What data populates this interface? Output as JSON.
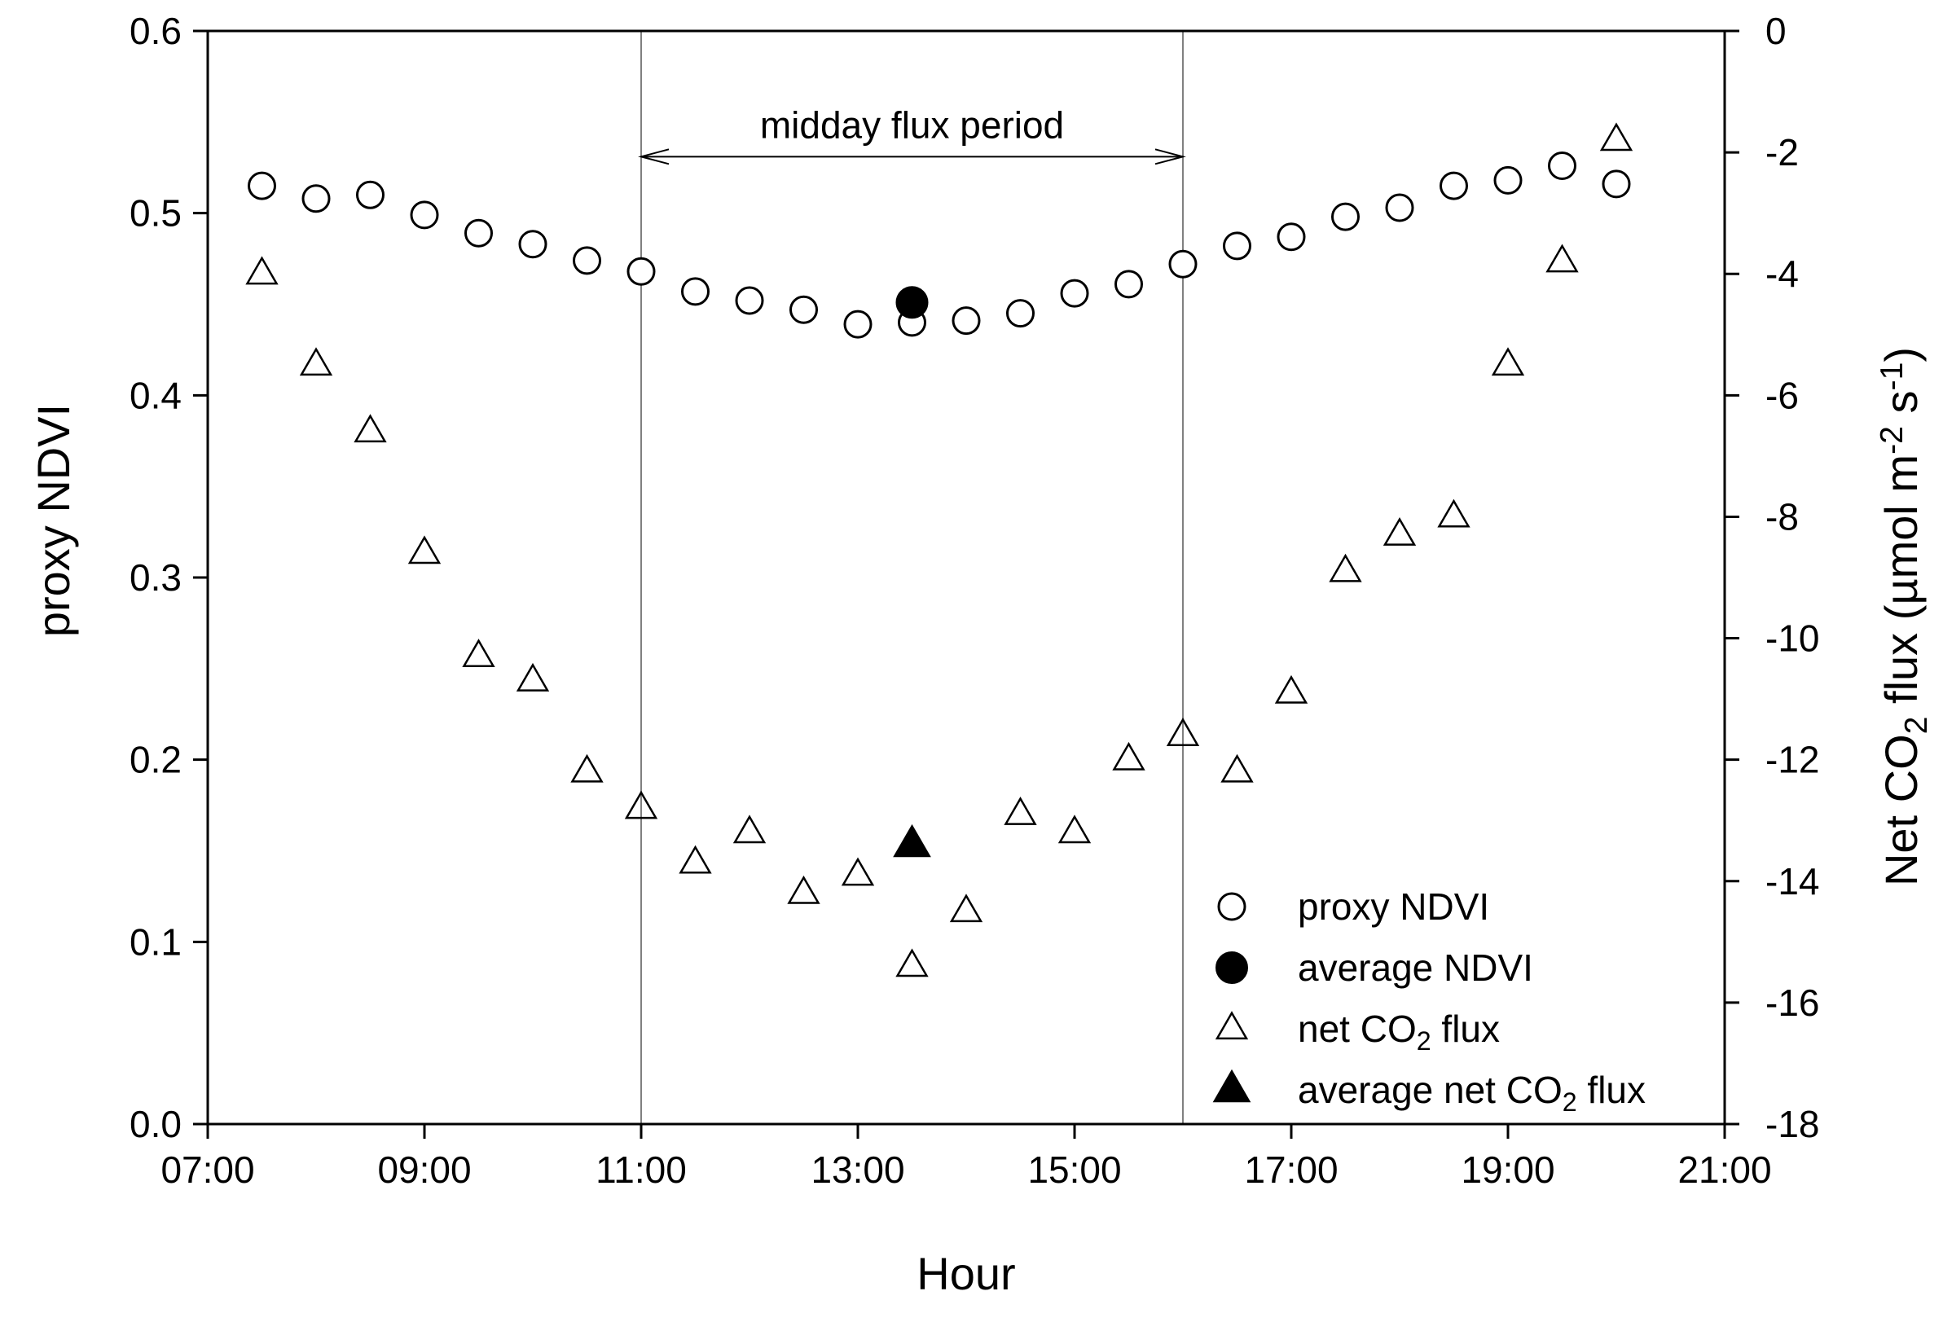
{
  "chart_data": {
    "type": "scatter",
    "title": "",
    "xlabel": "Hour",
    "ylabel_left": "proxy NDVI",
    "ylabel_right": {
      "main": "Net CO",
      "sub": "2",
      "rest": " flux (µmol m",
      "sup1": "-2",
      "mid": " s",
      "sup2": "-1",
      "end": ")"
    },
    "xlim": [
      7,
      21
    ],
    "ylim_left": [
      0.0,
      0.6
    ],
    "ylim_right": [
      -18,
      0
    ],
    "x_ticks": [
      {
        "value": 7,
        "label": "07:00"
      },
      {
        "value": 9,
        "label": "09:00"
      },
      {
        "value": 11,
        "label": "11:00"
      },
      {
        "value": 13,
        "label": "13:00"
      },
      {
        "value": 15,
        "label": "15:00"
      },
      {
        "value": 17,
        "label": "17:00"
      },
      {
        "value": 19,
        "label": "19:00"
      },
      {
        "value": 21,
        "label": "21:00"
      }
    ],
    "y_left_ticks": [
      {
        "value": 0.0,
        "label": "0.0"
      },
      {
        "value": 0.1,
        "label": "0.1"
      },
      {
        "value": 0.2,
        "label": "0.2"
      },
      {
        "value": 0.3,
        "label": "0.3"
      },
      {
        "value": 0.4,
        "label": "0.4"
      },
      {
        "value": 0.5,
        "label": "0.5"
      },
      {
        "value": 0.6,
        "label": "0.6"
      }
    ],
    "y_right_ticks": [
      {
        "value": 0,
        "label": "0"
      },
      {
        "value": -2,
        "label": "-2"
      },
      {
        "value": -4,
        "label": "-4"
      },
      {
        "value": -6,
        "label": "-6"
      },
      {
        "value": -8,
        "label": "-8"
      },
      {
        "value": -10,
        "label": "-10"
      },
      {
        "value": -12,
        "label": "-12"
      },
      {
        "value": -14,
        "label": "-14"
      },
      {
        "value": -16,
        "label": "-16"
      },
      {
        "value": -18,
        "label": "-18"
      }
    ],
    "grid": false,
    "legend_position": "bottom-right",
    "series": [
      {
        "name": "proxy NDVI",
        "axis": "left",
        "marker": "circle-open",
        "points": [
          {
            "x": 7.5,
            "y": 0.515
          },
          {
            "x": 8.0,
            "y": 0.508
          },
          {
            "x": 8.5,
            "y": 0.51
          },
          {
            "x": 9.0,
            "y": 0.499
          },
          {
            "x": 9.5,
            "y": 0.489
          },
          {
            "x": 10.0,
            "y": 0.483
          },
          {
            "x": 10.5,
            "y": 0.474
          },
          {
            "x": 11.0,
            "y": 0.468
          },
          {
            "x": 11.5,
            "y": 0.457
          },
          {
            "x": 12.0,
            "y": 0.452
          },
          {
            "x": 12.5,
            "y": 0.447
          },
          {
            "x": 13.0,
            "y": 0.439
          },
          {
            "x": 13.5,
            "y": 0.44
          },
          {
            "x": 14.0,
            "y": 0.441
          },
          {
            "x": 14.5,
            "y": 0.445
          },
          {
            "x": 15.0,
            "y": 0.456
          },
          {
            "x": 15.5,
            "y": 0.461
          },
          {
            "x": 16.0,
            "y": 0.472
          },
          {
            "x": 16.5,
            "y": 0.482
          },
          {
            "x": 17.0,
            "y": 0.487
          },
          {
            "x": 17.5,
            "y": 0.498
          },
          {
            "x": 18.0,
            "y": 0.503
          },
          {
            "x": 18.5,
            "y": 0.515
          },
          {
            "x": 19.0,
            "y": 0.518
          },
          {
            "x": 19.5,
            "y": 0.526
          },
          {
            "x": 20.0,
            "y": 0.516
          }
        ]
      },
      {
        "name": "average NDVI",
        "axis": "left",
        "marker": "circle-filled",
        "points": [
          {
            "x": 13.5,
            "y": 0.451
          }
        ]
      },
      {
        "name": {
          "main": "net CO",
          "sub": "2",
          "rest": " flux"
        },
        "axis": "right",
        "marker": "triangle-open",
        "points": [
          {
            "x": 7.5,
            "y": -4.0
          },
          {
            "x": 8.0,
            "y": -5.5
          },
          {
            "x": 8.5,
            "y": -6.6
          },
          {
            "x": 9.0,
            "y": -8.6
          },
          {
            "x": 9.5,
            "y": -10.3
          },
          {
            "x": 10.0,
            "y": -10.7
          },
          {
            "x": 10.5,
            "y": -12.2
          },
          {
            "x": 11.0,
            "y": -12.8
          },
          {
            "x": 11.5,
            "y": -13.7
          },
          {
            "x": 12.0,
            "y": -13.2
          },
          {
            "x": 12.5,
            "y": -14.2
          },
          {
            "x": 13.0,
            "y": -13.9
          },
          {
            "x": 13.5,
            "y": -15.4
          },
          {
            "x": 14.0,
            "y": -14.5
          },
          {
            "x": 14.5,
            "y": -12.9
          },
          {
            "x": 15.0,
            "y": -13.2
          },
          {
            "x": 15.5,
            "y": -12.0
          },
          {
            "x": 16.0,
            "y": -11.6
          },
          {
            "x": 16.5,
            "y": -12.2
          },
          {
            "x": 17.0,
            "y": -10.9
          },
          {
            "x": 17.5,
            "y": -8.9
          },
          {
            "x": 18.0,
            "y": -8.3
          },
          {
            "x": 18.5,
            "y": -8.0
          },
          {
            "x": 19.0,
            "y": -5.5
          },
          {
            "x": 19.5,
            "y": -3.8
          },
          {
            "x": 20.0,
            "y": -1.8
          }
        ]
      },
      {
        "name": {
          "main": "average net CO",
          "sub": "2",
          "rest": " flux"
        },
        "axis": "right",
        "marker": "triangle-filled",
        "points": [
          {
            "x": 13.5,
            "y": -13.4
          }
        ]
      }
    ],
    "annotations": [
      {
        "type": "vline",
        "x": 11.0
      },
      {
        "type": "vline",
        "x": 16.0
      },
      {
        "type": "double-arrow",
        "x_start": 11.0,
        "x_end": 16.0,
        "y": 0.531,
        "axis": "left",
        "label": "midday flux period"
      }
    ]
  }
}
